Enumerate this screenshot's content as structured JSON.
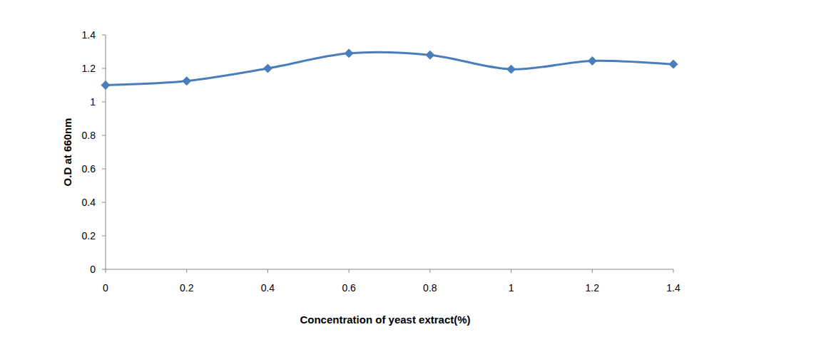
{
  "chart_data": {
    "type": "line",
    "x_label": "Concentration of yeast extract(%)",
    "y_label": "O.D at 660nm",
    "x": [
      0,
      0.2,
      0.4,
      0.6,
      0.8,
      1,
      1.2,
      1.4
    ],
    "values": [
      1.1,
      1.125,
      1.2,
      1.29,
      1.28,
      1.195,
      1.245,
      1.225
    ],
    "color": "#4a7ebb",
    "marker": "diamond",
    "line_style": "smooth",
    "xlim": [
      0,
      1.4
    ],
    "xticks": [
      0,
      0.2,
      0.4,
      0.6,
      0.8,
      1,
      1.2,
      1.4
    ],
    "ylim": [
      0,
      1.4
    ],
    "yticks": [
      0,
      0.2,
      0.4,
      0.6,
      0.8,
      1,
      1.2,
      1.4
    ],
    "grid": false
  }
}
